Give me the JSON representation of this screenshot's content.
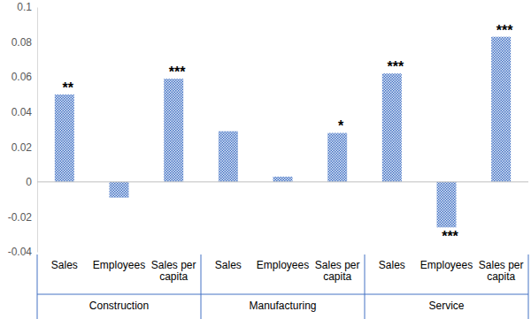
{
  "chart_data": {
    "type": "bar",
    "categories": [
      "Sales",
      "Employees",
      "Sales per capita",
      "Sales",
      "Employees",
      "Sales per capita",
      "Sales",
      "Employees",
      "Sales per capita"
    ],
    "groups": [
      "Construction",
      "Manufacturing",
      "Service"
    ],
    "values": [
      0.05,
      -0.009,
      0.059,
      0.029,
      0.003,
      0.028,
      0.062,
      -0.026,
      0.083
    ],
    "annotations": [
      "**",
      null,
      "***",
      null,
      null,
      "*",
      "***",
      "***",
      "***"
    ],
    "color": "#4472c4",
    "ylim": [
      -0.04,
      0.1
    ],
    "yticks": [
      -0.04,
      -0.02,
      0,
      0.02,
      0.04,
      0.06,
      0.08,
      0.1
    ],
    "grid": false
  }
}
